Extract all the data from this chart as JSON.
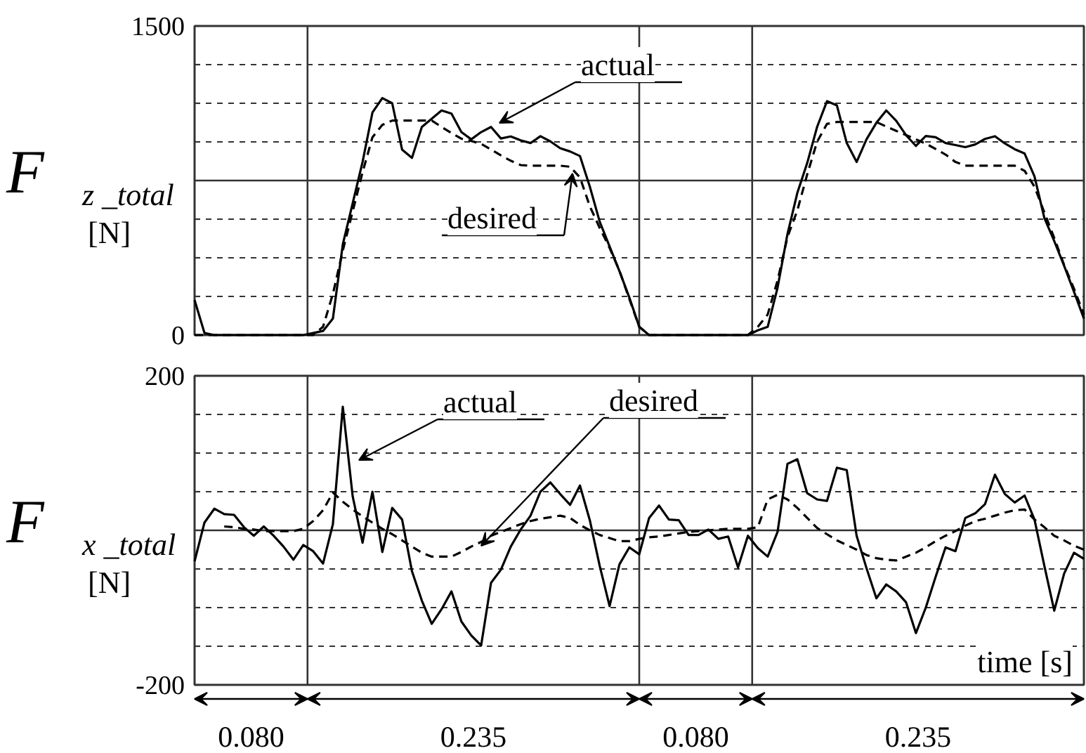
{
  "chart_data": [
    {
      "type": "line",
      "ylabel": "F$_{z _total}$ [N]",
      "ylim": [
        0,
        1500
      ],
      "categories": [
        null,
        null,
        null,
        null,
        null,
        null,
        null,
        null,
        null,
        null,
        null,
        null,
        null,
        null,
        null,
        null,
        null,
        null,
        null,
        null,
        null,
        null,
        null,
        null,
        null,
        null,
        null,
        null,
        null,
        null,
        null,
        null,
        null,
        null,
        null,
        null,
        null,
        null,
        null,
        null,
        null,
        null,
        null,
        null,
        null,
        null,
        null,
        null,
        null,
        null,
        null,
        null,
        null,
        null,
        null,
        null,
        null,
        null,
        null,
        null,
        null,
        null,
        null,
        null,
        null,
        null,
        null,
        null,
        null,
        null,
        null,
        null,
        null,
        null,
        null,
        null,
        null,
        null,
        null,
        null,
        null,
        null,
        null,
        null,
        null,
        null,
        null,
        null,
        null,
        null,
        null
      ],
      "yticks": [
        0,
        {
          "value": 187.5,
          "label": null
        },
        {
          "value": 375,
          "label": null
        },
        {
          "value": 562.5,
          "label": null
        },
        {
          "value": 937.5,
          "label": null
        },
        {
          "value": 1125,
          "label": null
        },
        {
          "value": 1312.5,
          "label": null
        },
        1500
      ],
      "tick_labels": "y",
      "grid": "y",
      "ref_lines": [
        {
          "axis": "y",
          "value": 750
        }
      ],
      "annotations": [
        "actual",
        "desired"
      ],
      "series": [
        {
          "color": "#000000",
          "line_style": "solid",
          "values": [
            170,
            10,
            0,
            0,
            0,
            0,
            0,
            0,
            0,
            0,
            0,
            0,
            10,
            20,
            80,
            440,
            640,
            840,
            1080,
            1150,
            1125,
            900,
            860,
            1010,
            1050,
            1090,
            1075,
            985,
            950,
            985,
            1010,
            954,
            964,
            945,
            932,
            965,
            940,
            907,
            891,
            869,
            720,
            550,
            430,
            310,
            182,
            40,
            0,
            0,
            0,
            0,
            0,
            0,
            0,
            0,
            0,
            0,
            0,
            23,
            40,
            230,
            490,
            690,
            835,
            1010,
            1135,
            1115,
            932,
            840,
            950,
            1030,
            1090,
            1040,
            970,
            918,
            966,
            960,
            932,
            922,
            912,
            925,
            952,
            965,
            930,
            902,
            881,
            770,
            568,
            456,
            336,
            210,
            80
          ]
        },
        {
          "color": "#000000",
          "line_style": "dashed",
          "values": [
            0,
            0,
            0,
            0,
            0,
            0,
            0,
            0,
            0,
            0,
            0,
            0,
            0,
            40,
            200,
            410,
            600,
            790,
            960,
            1020,
            1041,
            1041,
            1041,
            1041,
            1041,
            1010,
            980,
            953,
            942,
            928,
            900,
            872,
            846,
            825,
            822,
            822,
            822,
            822,
            817,
            765,
            625,
            520,
            423,
            312,
            175,
            40,
            0,
            0,
            0,
            0,
            0,
            0,
            0,
            0,
            0,
            0,
            0,
            40,
            100,
            265,
            475,
            605,
            780,
            938,
            1025,
            1034,
            1034,
            1034,
            1034,
            1034,
            1012,
            991,
            971,
            950,
            929,
            903,
            876,
            840,
            822,
            822,
            822,
            822,
            822,
            822,
            797,
            720,
            595,
            471,
            340,
            225,
            100
          ]
        }
      ]
    },
    {
      "type": "line",
      "ylabel": "F$_{x _total}$ [N]",
      "ylim": [
        -200,
        200
      ],
      "categories": [
        null,
        null,
        null,
        null,
        null,
        null,
        null,
        null,
        null,
        null,
        null,
        null,
        null,
        null,
        null,
        null,
        null,
        null,
        null,
        null,
        null,
        null,
        null,
        null,
        null,
        null,
        null,
        null,
        null,
        null,
        null,
        null,
        null,
        null,
        null,
        null,
        null,
        null,
        null,
        null,
        null,
        null,
        null,
        null,
        null,
        null,
        null,
        null,
        null,
        null,
        null,
        null,
        null,
        null,
        null,
        null,
        null,
        null,
        null,
        null,
        null,
        null,
        null,
        null,
        null,
        null,
        null,
        null,
        null,
        null,
        null,
        null,
        null,
        null,
        null,
        null,
        null,
        null,
        null,
        null,
        null,
        null,
        null,
        null,
        null,
        null,
        null,
        null,
        null,
        null,
        null
      ],
      "yticks": [
        -200,
        {
          "value": -150,
          "label": null
        },
        {
          "value": -100,
          "label": null
        },
        {
          "value": -50,
          "label": null
        },
        {
          "value": 50,
          "label": null
        },
        {
          "value": 100,
          "label": null
        },
        {
          "value": 150,
          "label": null
        },
        200
      ],
      "tick_labels": "y",
      "grid": "y",
      "ref_lines": [
        {
          "axis": "y",
          "value": 0
        }
      ],
      "annotations": [
        "actual",
        "desired",
        "time [s]",
        "0.080",
        "0.235",
        "0.080",
        "0.235"
      ],
      "series": [
        {
          "color": "#000000",
          "line_style": "solid",
          "values": [
            -40,
            10,
            28,
            21,
            20,
            4,
            -7,
            5,
            -7,
            -21,
            -38,
            -19,
            -27,
            -43,
            8,
            160,
            44,
            -16,
            50,
            -28,
            29,
            14,
            -53,
            -91,
            -121,
            -102,
            -79,
            -118,
            -136,
            -149,
            -68,
            -51,
            -21,
            1,
            19,
            50,
            62,
            47,
            33,
            58,
            13,
            -46,
            -98,
            -44,
            -22,
            -31,
            16,
            32,
            14,
            13,
            -6,
            -6,
            1,
            -11,
            -8,
            -48,
            -7,
            -23,
            -34,
            -2,
            86,
            92,
            48,
            40,
            38,
            81,
            78,
            -7,
            -49,
            -88,
            -70,
            -79,
            -93,
            -133,
            -100,
            -60,
            -22,
            -27,
            16,
            22,
            34,
            72,
            47,
            36,
            45,
            14,
            -46,
            -104,
            -56,
            -29,
            -37
          ]
        },
        {
          "color": "#000000",
          "line_style": "dashed",
          "values": [
            null,
            null,
            null,
            5,
            4,
            2,
            1,
            -1,
            -1,
            -1,
            -1,
            2,
            12,
            26,
            49,
            37,
            27,
            18,
            10,
            2,
            -5,
            -13,
            -21,
            -29,
            -34,
            -34,
            -34,
            -28,
            -21,
            -15,
            -7,
            -2,
            3,
            8,
            12,
            15,
            17,
            19,
            16,
            7,
            0,
            -6,
            -10,
            -14,
            -14,
            -11,
            -9,
            -8,
            -6,
            -4,
            -2,
            -1,
            0,
            1,
            2,
            2,
            2,
            4,
            40,
            46,
            40,
            29,
            16,
            3,
            -5,
            -13,
            -19,
            -25,
            -32,
            -36,
            -38,
            -39,
            -34,
            -29,
            -22,
            -14,
            -7,
            -1,
            6,
            12,
            15,
            19,
            23,
            26,
            27,
            14,
            4,
            -7,
            -13,
            -20,
            -25
          ]
        }
      ]
    }
  ]
}
